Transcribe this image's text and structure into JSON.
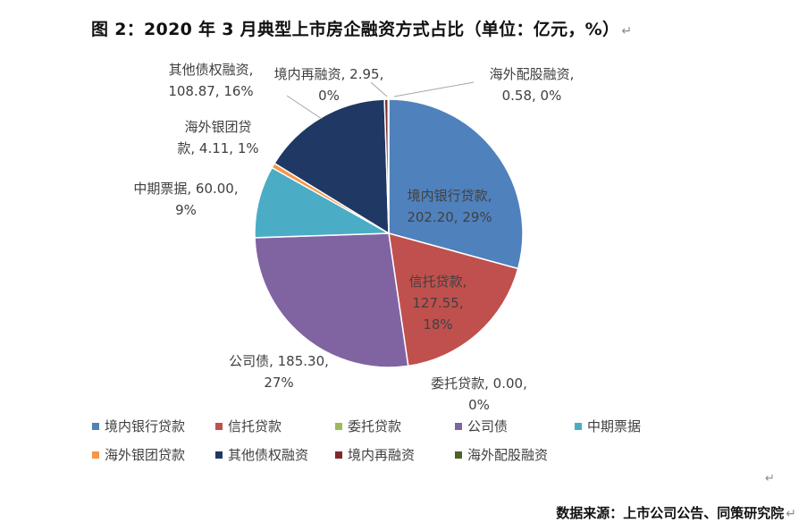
{
  "title": "图 2：2020 年 3 月典型上市房企融资方式占比（单位：亿元，%）",
  "source": "数据来源：上市公司公告、同策研究院",
  "paragraph_mark": "↵",
  "chart_data": {
    "type": "pie",
    "title": "图 2：2020 年 3 月典型上市房企融资方式占比（单位：亿元，%）",
    "unit": "亿元，%",
    "legend_position": "bottom",
    "slices": [
      {
        "name": "境内银行贷款",
        "value": 202.2,
        "percent": "29%",
        "color": "#4F81BD",
        "label_lines": [
          "境内银行贷款,",
          "202.20, 29%"
        ]
      },
      {
        "name": "信托贷款",
        "value": 127.55,
        "percent": "18%",
        "color": "#C0504D",
        "label_lines": [
          "信托贷款,",
          "127.55,",
          "18%"
        ]
      },
      {
        "name": "委托贷款",
        "value": 0.0,
        "percent": "0%",
        "color": "#9BBB59",
        "label_lines": [
          "委托贷款, 0.00,",
          "0%"
        ]
      },
      {
        "name": "公司债",
        "value": 185.3,
        "percent": "27%",
        "color": "#8064A2",
        "label_lines": [
          "公司债, 185.30,",
          "27%"
        ]
      },
      {
        "name": "中期票据",
        "value": 60.0,
        "percent": "9%",
        "color": "#4BACC6",
        "label_lines": [
          "中期票据, 60.00,",
          "9%"
        ]
      },
      {
        "name": "海外银团贷款",
        "value": 4.11,
        "percent": "1%",
        "color": "#F79646",
        "label_lines": [
          "海外银团贷",
          "款, 4.11, 1%"
        ]
      },
      {
        "name": "其他债权融资",
        "value": 108.87,
        "percent": "16%",
        "color": "#1F3864",
        "label_lines": [
          "其他债权融资,",
          "108.87, 16%"
        ]
      },
      {
        "name": "境内再融资",
        "value": 2.95,
        "percent": "0%",
        "color": "#7B2C2C",
        "label_lines": [
          "境内再融资, 2.95,",
          "0%"
        ]
      },
      {
        "name": "海外配股融资",
        "value": 0.58,
        "percent": "0%",
        "color": "#4F6228",
        "label_lines": [
          "海外配股融资,",
          "0.58, 0%"
        ]
      }
    ]
  }
}
